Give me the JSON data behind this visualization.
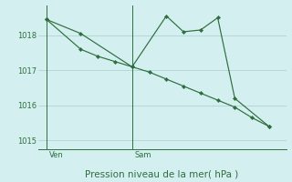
{
  "background_color": "#d4efef",
  "grid_color": "#aed4d4",
  "line_color": "#2d6e3e",
  "marker_color": "#2d6e3e",
  "xlabel": "Pression niveau de la mer( hPa )",
  "ylim": [
    1014.75,
    1018.85
  ],
  "yticks": [
    1015,
    1016,
    1017,
    1018
  ],
  "series1_x": [
    0,
    2,
    5,
    7,
    8,
    9,
    10,
    11,
    13
  ],
  "series1_y": [
    1018.45,
    1018.05,
    1017.1,
    1018.55,
    1018.1,
    1018.15,
    1018.5,
    1016.2,
    1015.4
  ],
  "series2_x": [
    0,
    2,
    3,
    4,
    5,
    6,
    7,
    8,
    9,
    10,
    11,
    12,
    13
  ],
  "series2_y": [
    1018.45,
    1017.6,
    1017.4,
    1017.25,
    1017.1,
    1016.95,
    1016.75,
    1016.55,
    1016.35,
    1016.15,
    1015.95,
    1015.65,
    1015.4
  ],
  "vline_x": [
    0,
    5
  ],
  "vline_labels": [
    "Ven",
    "Sam"
  ],
  "xlim": [
    -0.5,
    14
  ],
  "total_x": 14
}
